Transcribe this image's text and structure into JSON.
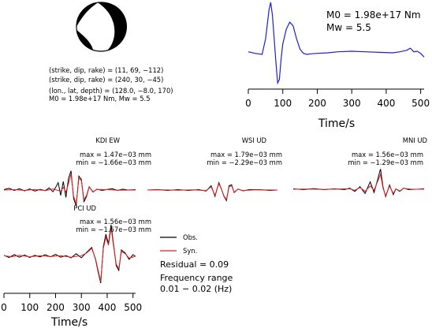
{
  "mechanism": {
    "lines": [
      "(strike, dip, rake) = (11, 69, −112)",
      "(strike, dip, rake) = (240, 30, −45)",
      "(lon., lat, depth) = (128.0, −8.0, 170)",
      "M0 = 1.98e+17 Nm, Mw = 5.5"
    ]
  },
  "stf": {
    "m0_label": "M0 = 1.98e+17 Nm",
    "mw_label": "Mw = 5.5",
    "x_ticks": [
      "0",
      "100",
      "200",
      "300",
      "400",
      "500"
    ],
    "xlabel": "Time/s",
    "color": "#1f1fc8"
  },
  "stations": [
    {
      "name": "KDI EW",
      "max_label": "max = 1.47e−03 mm",
      "min_label": "min = −1.66e−03 mm"
    },
    {
      "name": "WSI UD",
      "max_label": "max = 1.79e−03 mm",
      "min_label": "min = −2.29e−03 mm"
    },
    {
      "name": "MNI UD",
      "max_label": "max = 1.56e−03 mm",
      "min_label": "min = −1.29e−03 mm"
    },
    {
      "name": "PCI UD",
      "max_label": "max = 1.56e−03 mm",
      "min_label": "min = −1.67e−03 mm"
    }
  ],
  "legend": {
    "obs_label": "Obs.",
    "syn_label": "Syn.",
    "obs_color": "#000000",
    "syn_color": "#e02020"
  },
  "info": {
    "residual": "Residual = 0.09",
    "freq_title": "Frequency range",
    "freq_value": "0.01 − 0.02 (Hz)"
  },
  "bottom_axis": {
    "x_ticks": [
      "0",
      "100",
      "200",
      "300",
      "400",
      "500"
    ],
    "xlabel": "Time/s"
  },
  "chart_data": [
    {
      "type": "line",
      "name": "source-time-function",
      "x": [
        0,
        20,
        40,
        50,
        60,
        65,
        70,
        75,
        80,
        85,
        90,
        95,
        100,
        110,
        120,
        130,
        140,
        150,
        160,
        170,
        180,
        200,
        230,
        260,
        300,
        340,
        380,
        420,
        440,
        460,
        470,
        480,
        490,
        500,
        510
      ],
      "y": [
        0.05,
        0.02,
        0.0,
        0.3,
        0.85,
        1.0,
        0.75,
        0.3,
        -0.15,
        -0.55,
        -0.48,
        -0.1,
        0.2,
        0.48,
        0.62,
        0.55,
        0.3,
        0.1,
        0.02,
        0.0,
        0.01,
        0.02,
        0.03,
        0.05,
        0.06,
        0.05,
        0.04,
        0.03,
        0.05,
        0.08,
        0.12,
        0.05,
        0.06,
        0.02,
        -0.05
      ],
      "xlim": [
        0,
        510
      ],
      "x_ticks": [
        0,
        100,
        200,
        300,
        400,
        500
      ]
    },
    {
      "type": "line",
      "name": "seismograms",
      "x_ticks": [
        0,
        100,
        200,
        300,
        400,
        500
      ],
      "xlim": [
        0,
        510
      ],
      "traces": [
        {
          "station": "KDI EW",
          "obs": [
            [
              0,
              0.02
            ],
            [
              20,
              0.08
            ],
            [
              40,
              -0.02
            ],
            [
              60,
              0.06
            ],
            [
              80,
              -0.04
            ],
            [
              100,
              0.05
            ],
            [
              120,
              -0.05
            ],
            [
              140,
              0.03
            ],
            [
              160,
              -0.03
            ],
            [
              175,
              0.1
            ],
            [
              190,
              -0.08
            ],
            [
              200,
              0.12
            ],
            [
              210,
              0.35
            ],
            [
              220,
              -0.25
            ],
            [
              230,
              0.4
            ],
            [
              240,
              -0.35
            ],
            [
              250,
              0.55
            ],
            [
              260,
              0.9
            ],
            [
              270,
              -0.4
            ],
            [
              280,
              -0.75
            ],
            [
              290,
              0.65
            ],
            [
              300,
              0.5
            ],
            [
              310,
              -0.55
            ],
            [
              320,
              -0.3
            ],
            [
              330,
              0.15
            ],
            [
              345,
              -0.1
            ],
            [
              360,
              0.04
            ],
            [
              380,
              -0.02
            ],
            [
              400,
              0.03
            ],
            [
              420,
              0.06
            ],
            [
              440,
              -0.02
            ],
            [
              460,
              0.04
            ],
            [
              480,
              0.0
            ],
            [
              510,
              0.02
            ]
          ],
          "syn": [
            [
              0,
              0.0
            ],
            [
              40,
              0.02
            ],
            [
              80,
              -0.02
            ],
            [
              120,
              0.03
            ],
            [
              160,
              -0.03
            ],
            [
              190,
              0.05
            ],
            [
              210,
              -0.02
            ],
            [
              220,
              -0.05
            ],
            [
              230,
              0.12
            ],
            [
              240,
              -0.1
            ],
            [
              250,
              0.3
            ],
            [
              260,
              0.75
            ],
            [
              270,
              -0.3
            ],
            [
              280,
              -0.65
            ],
            [
              290,
              0.55
            ],
            [
              300,
              0.45
            ],
            [
              310,
              -0.45
            ],
            [
              320,
              -0.25
            ],
            [
              330,
              0.15
            ],
            [
              345,
              -0.08
            ],
            [
              360,
              0.03
            ],
            [
              400,
              0.02
            ],
            [
              440,
              -0.01
            ],
            [
              510,
              0.0
            ]
          ]
        },
        {
          "station": "WSI UD",
          "obs": [
            [
              0,
              0.0
            ],
            [
              40,
              0.02
            ],
            [
              80,
              -0.02
            ],
            [
              120,
              0.02
            ],
            [
              160,
              -0.02
            ],
            [
              200,
              0.02
            ],
            [
              230,
              -0.05
            ],
            [
              250,
              0.2
            ],
            [
              265,
              -0.3
            ],
            [
              280,
              0.35
            ],
            [
              290,
              0.05
            ],
            [
              300,
              -0.3
            ],
            [
              310,
              -0.5
            ],
            [
              320,
              0.2
            ],
            [
              330,
              0.25
            ],
            [
              340,
              -0.12
            ],
            [
              355,
              0.05
            ],
            [
              375,
              -0.04
            ],
            [
              400,
              0.02
            ],
            [
              440,
              0.02
            ],
            [
              480,
              -0.02
            ],
            [
              510,
              0.0
            ]
          ],
          "syn": [
            [
              0,
              0.0
            ],
            [
              60,
              0.01
            ],
            [
              120,
              -0.01
            ],
            [
              180,
              0.01
            ],
            [
              230,
              -0.03
            ],
            [
              250,
              0.15
            ],
            [
              265,
              -0.25
            ],
            [
              280,
              0.3
            ],
            [
              290,
              0.05
            ],
            [
              300,
              -0.28
            ],
            [
              310,
              -0.45
            ],
            [
              320,
              0.15
            ],
            [
              330,
              0.2
            ],
            [
              340,
              -0.1
            ],
            [
              355,
              0.04
            ],
            [
              375,
              -0.03
            ],
            [
              420,
              0.01
            ],
            [
              510,
              0.0
            ]
          ]
        },
        {
          "station": "MNI UD",
          "obs": [
            [
              0,
              0.02
            ],
            [
              40,
              -0.02
            ],
            [
              80,
              0.03
            ],
            [
              120,
              -0.02
            ],
            [
              160,
              0.02
            ],
            [
              200,
              -0.02
            ],
            [
              220,
              0.05
            ],
            [
              240,
              -0.1
            ],
            [
              260,
              0.12
            ],
            [
              280,
              -0.2
            ],
            [
              300,
              0.35
            ],
            [
              315,
              -0.15
            ],
            [
              330,
              0.5
            ],
            [
              340,
              0.95
            ],
            [
              350,
              0.1
            ],
            [
              360,
              -0.35
            ],
            [
              375,
              0.2
            ],
            [
              390,
              -0.25
            ],
            [
              400,
              0.02
            ],
            [
              415,
              -0.1
            ],
            [
              430,
              0.05
            ],
            [
              450,
              -0.02
            ],
            [
              480,
              0.0
            ],
            [
              510,
              0.02
            ]
          ],
          "syn": [
            [
              0,
              0.0
            ],
            [
              60,
              0.01
            ],
            [
              120,
              -0.01
            ],
            [
              180,
              0.01
            ],
            [
              220,
              0.02
            ],
            [
              240,
              -0.05
            ],
            [
              260,
              0.08
            ],
            [
              280,
              -0.1
            ],
            [
              300,
              0.15
            ],
            [
              315,
              -0.05
            ],
            [
              330,
              0.4
            ],
            [
              340,
              0.7
            ],
            [
              350,
              0.05
            ],
            [
              360,
              -0.3
            ],
            [
              375,
              0.15
            ],
            [
              390,
              -0.2
            ],
            [
              400,
              0.02
            ],
            [
              415,
              -0.08
            ],
            [
              430,
              0.04
            ],
            [
              460,
              0.0
            ],
            [
              510,
              0.0
            ]
          ]
        },
        {
          "station": "PCI UD",
          "obs": [
            [
              0,
              0.03
            ],
            [
              20,
              -0.04
            ],
            [
              40,
              0.05
            ],
            [
              60,
              -0.03
            ],
            [
              80,
              0.04
            ],
            [
              100,
              -0.04
            ],
            [
              120,
              0.03
            ],
            [
              140,
              -0.02
            ],
            [
              160,
              0.05
            ],
            [
              180,
              -0.02
            ],
            [
              200,
              0.06
            ],
            [
              220,
              -0.03
            ],
            [
              240,
              0.02
            ],
            [
              260,
              -0.05
            ],
            [
              280,
              0.08
            ],
            [
              300,
              -0.05
            ],
            [
              320,
              0.12
            ],
            [
              340,
              0.28
            ],
            [
              355,
              -0.1
            ],
            [
              365,
              -0.5
            ],
            [
              375,
              -0.85
            ],
            [
              385,
              0.3
            ],
            [
              395,
              0.7
            ],
            [
              405,
              0.4
            ],
            [
              415,
              1.0
            ],
            [
              425,
              0.35
            ],
            [
              435,
              -0.3
            ],
            [
              445,
              -0.45
            ],
            [
              455,
              0.2
            ],
            [
              470,
              0.1
            ],
            [
              485,
              -0.1
            ],
            [
              500,
              0.05
            ],
            [
              510,
              0.0
            ]
          ],
          "syn": [
            [
              0,
              0.02
            ],
            [
              30,
              -0.02
            ],
            [
              60,
              0.03
            ],
            [
              100,
              -0.02
            ],
            [
              140,
              0.02
            ],
            [
              180,
              -0.01
            ],
            [
              220,
              0.02
            ],
            [
              260,
              -0.03
            ],
            [
              300,
              0.02
            ],
            [
              320,
              0.1
            ],
            [
              340,
              0.25
            ],
            [
              355,
              -0.08
            ],
            [
              365,
              -0.45
            ],
            [
              375,
              -0.8
            ],
            [
              385,
              0.25
            ],
            [
              395,
              0.6
            ],
            [
              405,
              0.35
            ],
            [
              415,
              0.9
            ],
            [
              425,
              0.3
            ],
            [
              435,
              -0.25
            ],
            [
              445,
              -0.4
            ],
            [
              455,
              0.15
            ],
            [
              470,
              0.08
            ],
            [
              485,
              -0.06
            ],
            [
              510,
              0.0
            ]
          ]
        }
      ]
    }
  ]
}
